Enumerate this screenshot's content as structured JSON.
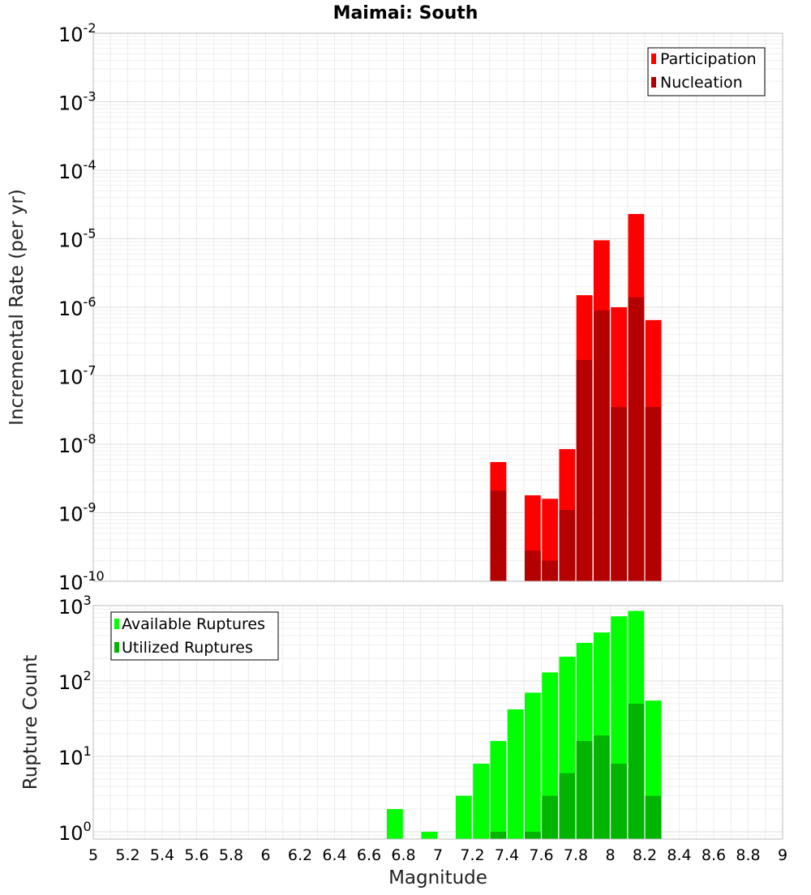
{
  "title": "Maimai: South",
  "x_axis": {
    "label": "Magnitude",
    "range": [
      5,
      9
    ],
    "ticks": [
      5,
      5.2,
      5.4,
      5.6,
      5.8,
      6,
      6.2,
      6.4,
      6.6,
      6.8,
      7,
      7.2,
      7.4,
      7.6,
      7.8,
      8,
      8.2,
      8.4,
      8.6,
      8.8,
      9
    ],
    "tick_labels": [
      "5",
      "5.2",
      "5.4",
      "5.6",
      "5.8",
      "6",
      "6.2",
      "6.4",
      "6.6",
      "6.8",
      "7",
      "7.2",
      "7.4",
      "7.6",
      "7.8",
      "8",
      "8.2",
      "8.4",
      "8.6",
      "8.8",
      "9"
    ]
  },
  "chart_data": [
    {
      "type": "bar",
      "scale": "log",
      "ylabel": "Incremental Rate (per yr)",
      "ylim": [
        1e-10,
        0.01
      ],
      "y_ticks": [
        {
          "base": "10",
          "exp": "-10"
        },
        {
          "base": "10",
          "exp": "-9"
        },
        {
          "base": "10",
          "exp": "-8"
        },
        {
          "base": "10",
          "exp": "-7"
        },
        {
          "base": "10",
          "exp": "-6"
        },
        {
          "base": "10",
          "exp": "-5"
        },
        {
          "base": "10",
          "exp": "-4"
        },
        {
          "base": "10",
          "exp": "-3"
        },
        {
          "base": "10",
          "exp": "-2"
        }
      ],
      "grid": true,
      "legend_position": "top-right",
      "series": [
        {
          "name": "Participation",
          "color": "#ff0000",
          "points": [
            {
              "x": 7.35,
              "y": 5.5e-09
            },
            {
              "x": 7.45,
              "y": 0
            },
            {
              "x": 7.55,
              "y": 1.8e-09
            },
            {
              "x": 7.65,
              "y": 1.6e-09
            },
            {
              "x": 7.75,
              "y": 8.5e-09
            },
            {
              "x": 7.85,
              "y": 1.5e-06
            },
            {
              "x": 7.95,
              "y": 9.5e-06
            },
            {
              "x": 8.05,
              "y": 1e-06
            },
            {
              "x": 8.15,
              "y": 2.3e-05
            },
            {
              "x": 8.25,
              "y": 6.5e-07
            }
          ]
        },
        {
          "name": "Nucleation",
          "color": "#b40000",
          "points": [
            {
              "x": 7.35,
              "y": 2.1e-09
            },
            {
              "x": 7.45,
              "y": 0
            },
            {
              "x": 7.55,
              "y": 2.8e-10
            },
            {
              "x": 7.65,
              "y": 2e-10
            },
            {
              "x": 7.75,
              "y": 1.1e-09
            },
            {
              "x": 7.85,
              "y": 1.7e-07
            },
            {
              "x": 7.95,
              "y": 9e-07
            },
            {
              "x": 8.05,
              "y": 3.5e-08
            },
            {
              "x": 8.15,
              "y": 1.4e-06
            },
            {
              "x": 8.25,
              "y": 3.5e-08
            }
          ]
        }
      ]
    },
    {
      "type": "bar",
      "scale": "log",
      "ylabel": "Rupture Count",
      "ylim": [
        0.8,
        1000
      ],
      "y_ticks": [
        {
          "base": "10",
          "exp": "0"
        },
        {
          "base": "10",
          "exp": "1"
        },
        {
          "base": "10",
          "exp": "2"
        },
        {
          "base": "10",
          "exp": "3"
        }
      ],
      "grid": true,
      "legend_position": "top-left",
      "series": [
        {
          "name": "Available Ruptures",
          "color": "#00ff00",
          "points": [
            {
              "x": 6.75,
              "y": 2
            },
            {
              "x": 6.95,
              "y": 1
            },
            {
              "x": 7.15,
              "y": 3
            },
            {
              "x": 7.25,
              "y": 8
            },
            {
              "x": 7.35,
              "y": 16
            },
            {
              "x": 7.45,
              "y": 42
            },
            {
              "x": 7.55,
              "y": 70
            },
            {
              "x": 7.65,
              "y": 130
            },
            {
              "x": 7.75,
              "y": 210
            },
            {
              "x": 7.85,
              "y": 320
            },
            {
              "x": 7.95,
              "y": 440
            },
            {
              "x": 8.05,
              "y": 720
            },
            {
              "x": 8.15,
              "y": 850
            },
            {
              "x": 8.25,
              "y": 55
            }
          ]
        },
        {
          "name": "Utilized Ruptures",
          "color": "#00b400",
          "points": [
            {
              "x": 7.35,
              "y": 1
            },
            {
              "x": 7.55,
              "y": 1
            },
            {
              "x": 7.65,
              "y": 3
            },
            {
              "x": 7.75,
              "y": 6
            },
            {
              "x": 7.85,
              "y": 16
            },
            {
              "x": 7.95,
              "y": 19
            },
            {
              "x": 8.05,
              "y": 8
            },
            {
              "x": 8.15,
              "y": 50
            },
            {
              "x": 8.25,
              "y": 3
            }
          ]
        }
      ]
    }
  ]
}
